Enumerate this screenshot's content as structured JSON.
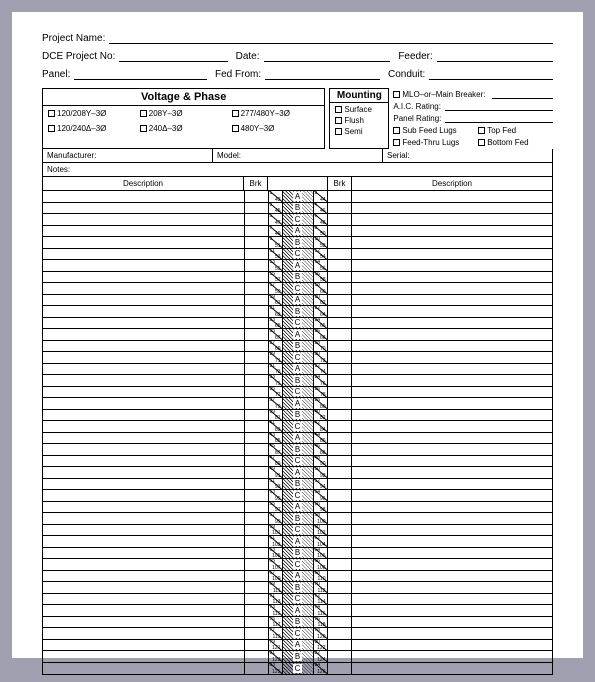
{
  "header": {
    "project_name_label": "Project Name:",
    "dce_label": "DCE Project No:",
    "date_label": "Date:",
    "feeder_label": "Feeder:",
    "panel_label": "Panel:",
    "fed_from_label": "Fed From:",
    "conduit_label": "Conduit:"
  },
  "voltage": {
    "title": "Voltage & Phase",
    "options": [
      "120/208Y–3Ø",
      "208Y–3Ø",
      "277/480Y–3Ø",
      "120/240Δ–3Ø",
      "240Δ–3Ø",
      "480Y–3Ø"
    ]
  },
  "mounting": {
    "title": "Mounting",
    "options": [
      "Surface",
      "Flush",
      "Semi"
    ]
  },
  "right_options": {
    "mlo_label": "MLO–or–Main Breaker:",
    "aic_label": "A.I.C. Rating:",
    "panel_rating_label": "Panel Rating:",
    "checks": [
      "Sub Feed Lugs",
      "Top Fed",
      "Feed-Thru Lugs",
      "Bottom Fed"
    ]
  },
  "meta": {
    "manufacturer_label": "Manufacturer:",
    "model_label": "Model:",
    "serial_label": "Serial:",
    "notes_label": "Notes:"
  },
  "table": {
    "description_label": "Description",
    "brk_label": "Brk",
    "phases": [
      "A",
      "B",
      "C",
      "A",
      "B",
      "C",
      "A",
      "B",
      "C",
      "A",
      "B",
      "C",
      "A",
      "B",
      "C",
      "A",
      "B",
      "C",
      "A",
      "B",
      "C",
      "A",
      "B",
      "C",
      "A",
      "B",
      "C",
      "A",
      "B",
      "C",
      "A",
      "B",
      "C",
      "A",
      "B",
      "C",
      "A",
      "B",
      "C",
      "A",
      "B",
      "C"
    ],
    "row_count": 42,
    "left_start": 1,
    "right_start": 2,
    "colors": {
      "border": "#000000",
      "background": "#ffffff",
      "page_bg": "#a0a0b0"
    }
  }
}
